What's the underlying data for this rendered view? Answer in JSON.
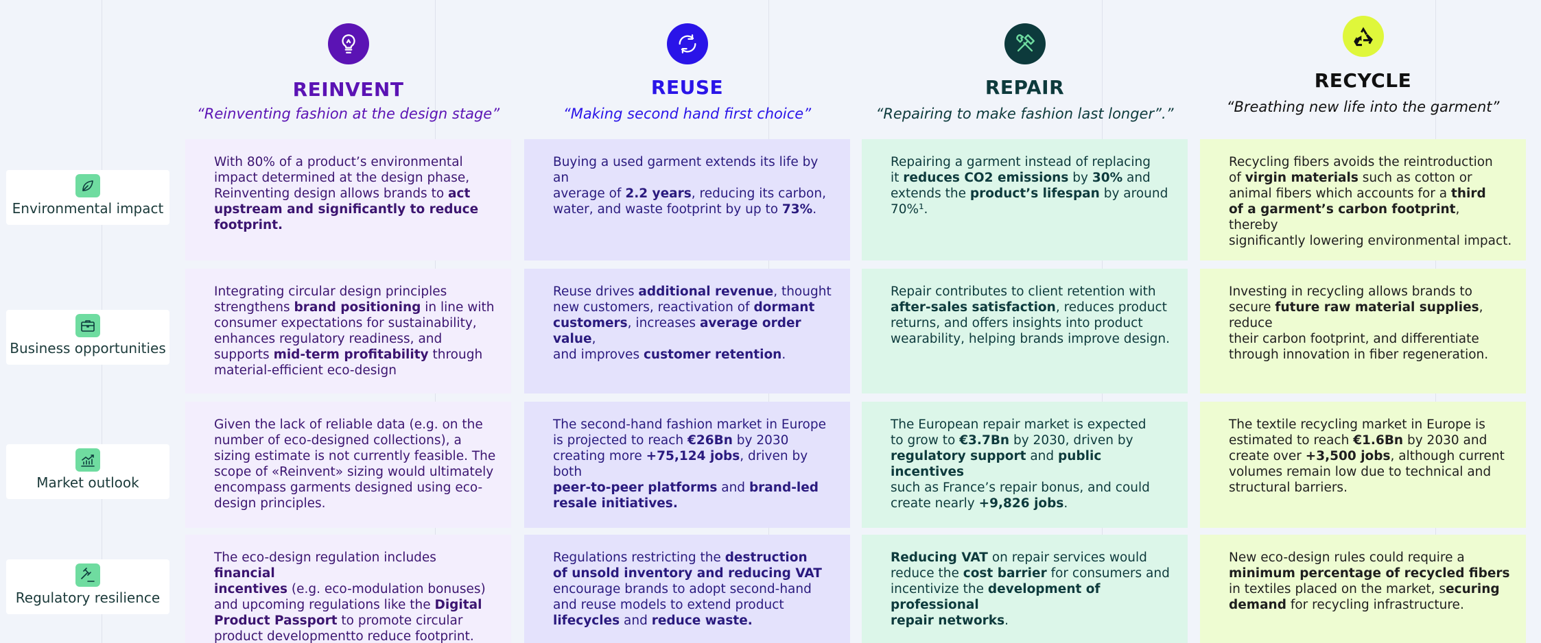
{
  "columns": [
    {
      "key": "reinvent",
      "icon": "lightbulb-recycle-icon",
      "title": "REINVENT",
      "subtitle": "“Reinventing fashion  at the design stage”",
      "color": "#5b13b4",
      "icon_bg": "#5b13b4",
      "cell_bg": "#f3eefd",
      "text_color": "#3b1470"
    },
    {
      "key": "reuse",
      "icon": "circular-arrows-icon",
      "title": "REUSE",
      "subtitle": "“Making second hand first choice”",
      "color": "#2a14e8",
      "icon_bg": "#2a14e8",
      "cell_bg": "#e4e2fc",
      "text_color": "#2a1a7e"
    },
    {
      "key": "repair",
      "icon": "hammer-wrench-icon",
      "title": "REPAIR",
      "subtitle": "“Repairing to make fashion last longer”.”",
      "color": "#0d3a3c",
      "icon_bg": "#0d3a3c",
      "cell_bg": "#dcf6e9",
      "text_color": "#0d3a3c"
    },
    {
      "key": "recycle",
      "icon": "recycle-symbol-icon",
      "title": "RECYCLE",
      "subtitle": "“Breathing new life into the garment”",
      "color": "#111111",
      "icon_bg": "#dff73b",
      "cell_bg": "#eefcd2",
      "text_color": "#1e1e1e"
    }
  ],
  "rows": [
    {
      "key": "environmental",
      "label": "Environmental impact",
      "icon": "leaf-icon"
    },
    {
      "key": "business",
      "label": "Business opportunities",
      "icon": "briefcase-icon"
    },
    {
      "key": "market",
      "label": "Market outlook",
      "icon": "growth-chart-icon"
    },
    {
      "key": "regulatory",
      "label": "Regulatory resilience",
      "icon": "gavel-icon"
    }
  ],
  "cells": [
    [
      "With 80% of a product’s environmental\nimpact determined at the design phase,\nReinventing design allows brands to **act\nupstream and significantly to reduce\nfootprint.**",
      "Buying a used garment extends its life by an\naverage of **2.2 years**, reducing its carbon,\nwater, and waste footprint by up to **73%**.",
      "Repairing a garment instead of replacing\nit **reduces CO2 emissions** by **30%** and\nextends the **product’s lifespan** by around\n70%¹.",
      "Recycling fibers avoids the reintroduction\nof **virgin materials** such as cotton or\nanimal fibers which accounts for a **third\nof a garment’s carbon footprint**, thereby\nsignificantly lowering environmental impact."
    ],
    [
      "Integrating circular design principles\nstrengthens **brand positioning** in line with\nconsumer expectations for sustainability,\nenhances regulatory readiness, and\nsupports **mid-term profitability** through\nmaterial-efficient eco-design",
      "Reuse drives **additional revenue**, thought\nnew customers, reactivation of **dormant\ncustomers**, increases **average order value**,\nand improves **customer retention**.",
      "Repair contributes to client retention with\n**after-sales satisfaction**, reduces product\nreturns, and offers insights into product\nwearability, helping brands improve design.",
      "Investing in recycling allows brands to\nsecure **future raw material supplies**, reduce\ntheir carbon footprint, and differentiate\nthrough innovation in fiber regeneration."
    ],
    [
      "Given the lack of reliable data (e.g. on the\nnumber of eco-designed collections), a\nsizing estimate is not currently feasible. The\nscope of «Reinvent» sizing would ultimately\nencompass garments designed using eco-\ndesign principles.",
      "The second-hand fashion market in Europe\nis projected to reach **€26Bn** by 2030\ncreating more **+75,124 jobs**, driven by both\n**peer-to-peer platforms** and **brand-led\nresale initiatives.**",
      "The European repair market is expected\nto grow to **€3.7Bn** by 2030, driven by\n**regulatory support** and **public incentives**\nsuch as France’s repair bonus, and could\ncreate nearly **+9,826 jobs**.",
      "The textile recycling market in Europe is\nestimated to reach **€1.6Bn** by 2030 and\ncreate over **+3,500 jobs**, although current\nvolumes remain low due to technical and\nstructural barriers."
    ],
    [
      "The eco-design regulation includes **financial\nincentives** (e.g. eco-modulation bonuses)\nand upcoming regulations like the **Digital\nProduct Passport** to promote circular\nproduct developmentto reduce footprint.",
      "Regulations restricting the **destruction\nof unsold inventory and reducing VAT**\nencourage brands to adopt second-hand\nand reuse models to extend product\n**lifecycles** and **reduce waste.**",
      "**Reducing VAT** on repair services would\nreduce the **cost barrier** for consumers and\nincentivize the **development of professional\nrepair networks**.",
      "New eco-design rules could require a\n**minimum percentage of recycled fibers**\nin textiles placed on the market, s**ecuring\ndemand** for recycling infrastructure."
    ]
  ]
}
